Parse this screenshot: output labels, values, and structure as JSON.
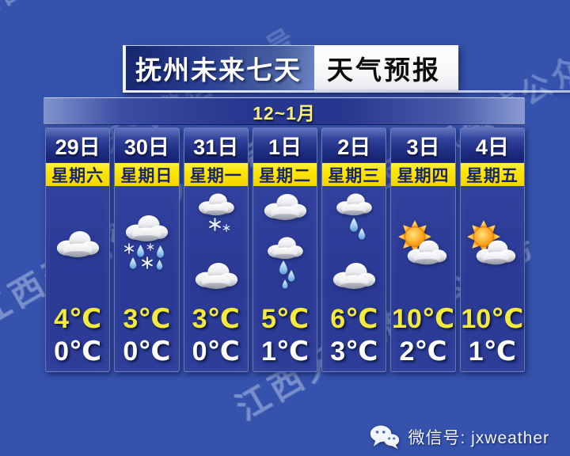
{
  "title": {
    "left": "抚州未来七天",
    "right": "天气预报"
  },
  "period_label": "12~1月",
  "watermark": {
    "text": "江西天气微信公众号"
  },
  "columns": [
    {
      "date": "29日",
      "day": "星期六",
      "icons": [
        "overcast"
      ],
      "high": "4℃",
      "low": "0℃"
    },
    {
      "date": "30日",
      "day": "星期日",
      "icons": [
        "sleet"
      ],
      "high": "3℃",
      "low": "0℃"
    },
    {
      "date": "31日",
      "day": "星期一",
      "icons": [
        "snow",
        "overcast"
      ],
      "high": "3℃",
      "low": "0℃"
    },
    {
      "date": "1日",
      "day": "星期二",
      "icons": [
        "overcast",
        "light-rain"
      ],
      "high": "5℃",
      "low": "1℃"
    },
    {
      "date": "2日",
      "day": "星期三",
      "icons": [
        "rain",
        "overcast"
      ],
      "high": "6℃",
      "low": "3℃"
    },
    {
      "date": "3日",
      "day": "星期四",
      "icons": [
        "partly-cloudy"
      ],
      "high": "10℃",
      "low": "2℃"
    },
    {
      "date": "4日",
      "day": "星期五",
      "icons": [
        "partly-cloudy"
      ],
      "high": "10℃",
      "low": "1℃"
    }
  ],
  "footer": {
    "wechat_label": "微信号: jxweather",
    "icon": "wechat-icon"
  },
  "colors": {
    "panel_blue": "#2e3d98",
    "header_navy": "#1d2b7e",
    "day_strip_yellow": "#ffe600",
    "temp_high_yellow": "#f4ea3d",
    "temp_low_white": "#ffffff",
    "period_text_yellow": "#f6ef7e",
    "watermark_blue": "#b9cef0"
  },
  "chart_data": {
    "type": "table",
    "title": "抚州未来七天 天气预报",
    "period": "12~1月",
    "categories": [
      "29日",
      "30日",
      "31日",
      "1日",
      "2日",
      "3日",
      "4日"
    ],
    "day_of_week": [
      "星期六",
      "星期日",
      "星期一",
      "星期二",
      "星期三",
      "星期四",
      "星期五"
    ],
    "conditions_icons": [
      [
        "overcast"
      ],
      [
        "sleet"
      ],
      [
        "snow",
        "overcast"
      ],
      [
        "overcast",
        "light-rain"
      ],
      [
        "rain",
        "overcast"
      ],
      [
        "partly-cloudy"
      ],
      [
        "partly-cloudy"
      ]
    ],
    "series": [
      {
        "name": "high_temp_c",
        "values": [
          4,
          3,
          3,
          5,
          6,
          10,
          10
        ]
      },
      {
        "name": "low_temp_c",
        "values": [
          0,
          0,
          0,
          1,
          3,
          2,
          1
        ]
      }
    ]
  }
}
